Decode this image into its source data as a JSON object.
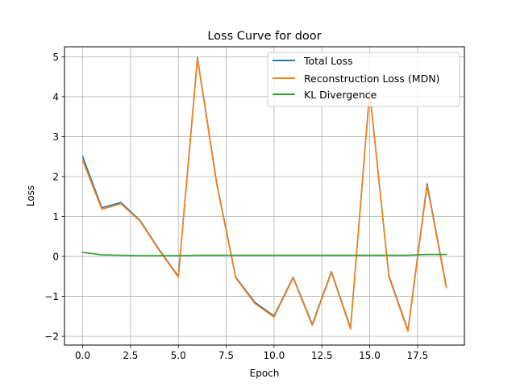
{
  "chart_data": {
    "type": "line",
    "title": "Loss Curve for door",
    "xlabel": "Epoch",
    "ylabel": "Loss",
    "xlim": [
      -0.95,
      19.95
    ],
    "ylim": [
      -2.22,
      5.25
    ],
    "xticks": [
      0.0,
      2.5,
      5.0,
      7.5,
      10.0,
      12.5,
      15.0,
      17.5
    ],
    "xtick_labels": [
      "0.0",
      "2.5",
      "5.0",
      "7.5",
      "10.0",
      "12.5",
      "15.0",
      "17.5"
    ],
    "yticks": [
      -2,
      -1,
      0,
      1,
      2,
      3,
      4,
      5
    ],
    "ytick_labels": [
      "−2",
      "−1",
      "0",
      "1",
      "2",
      "3",
      "4",
      "5"
    ],
    "grid": true,
    "legend_position": "upper right",
    "x": [
      0,
      1,
      2,
      3,
      4,
      5,
      6,
      7,
      8,
      9,
      10,
      11,
      12,
      13,
      14,
      15,
      16,
      17,
      18,
      19
    ],
    "series": [
      {
        "name": "Total Loss",
        "color": "#1f77b4",
        "values": [
          2.5,
          1.22,
          1.35,
          0.9,
          0.17,
          -0.5,
          4.98,
          1.85,
          -0.52,
          -1.15,
          -1.49,
          -0.52,
          -1.7,
          -0.38,
          -1.79,
          4.15,
          -0.48,
          -1.85,
          1.82,
          -0.74
        ]
      },
      {
        "name": "Reconstruction Loss (MDN)",
        "color": "#ff7f0e",
        "values": [
          2.4,
          1.18,
          1.32,
          0.88,
          0.15,
          -0.52,
          4.95,
          1.82,
          -0.54,
          -1.18,
          -1.52,
          -0.54,
          -1.73,
          -0.4,
          -1.82,
          4.12,
          -0.51,
          -1.88,
          1.77,
          -0.78
        ]
      },
      {
        "name": "KL Divergence",
        "color": "#2ca02c",
        "values": [
          0.1,
          0.04,
          0.03,
          0.02,
          0.02,
          0.02,
          0.03,
          0.03,
          0.03,
          0.03,
          0.03,
          0.03,
          0.03,
          0.03,
          0.03,
          0.03,
          0.03,
          0.03,
          0.05,
          0.05
        ]
      }
    ]
  }
}
